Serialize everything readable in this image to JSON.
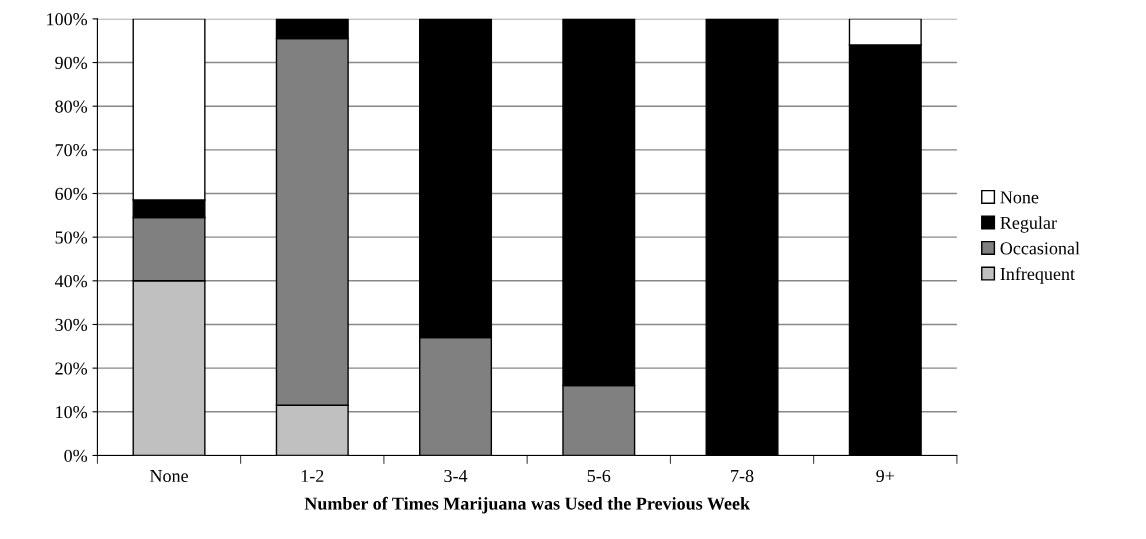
{
  "chart_data": {
    "type": "bar",
    "stacked": true,
    "xlabel": "Number of Times Marijuana was Used the Previous Week",
    "categories": [
      "None",
      "1-2",
      "3-4",
      "5-6",
      "7-8",
      "9+"
    ],
    "series": [
      {
        "name": "Infrequent",
        "color": "#c0c0c0",
        "values": [
          40,
          11.5,
          null,
          null,
          null,
          null
        ]
      },
      {
        "name": "Occasional",
        "color": "#808080",
        "values": [
          14.5,
          84,
          27,
          16,
          null,
          null
        ]
      },
      {
        "name": "Regular",
        "color": "#000000",
        "values": [
          4,
          4.5,
          73,
          84,
          100,
          94
        ]
      },
      {
        "name": "None",
        "color": "#ffffff",
        "values": [
          41.5,
          null,
          null,
          null,
          null,
          6
        ]
      }
    ],
    "ylim": [
      0,
      100
    ],
    "yticks": [
      {
        "value": 0,
        "label": "0%"
      },
      {
        "value": 10,
        "label": "10%"
      },
      {
        "value": 20,
        "label": "20%"
      },
      {
        "value": 30,
        "label": "30%"
      },
      {
        "value": 40,
        "label": "40%"
      },
      {
        "value": 50,
        "label": "50%"
      },
      {
        "value": 60,
        "label": "60%"
      },
      {
        "value": 70,
        "label": "70%"
      },
      {
        "value": 80,
        "label": "80%"
      },
      {
        "value": 90,
        "label": "90%"
      },
      {
        "value": 100,
        "label": "100%"
      }
    ],
    "grid": "y",
    "legend": "right"
  }
}
